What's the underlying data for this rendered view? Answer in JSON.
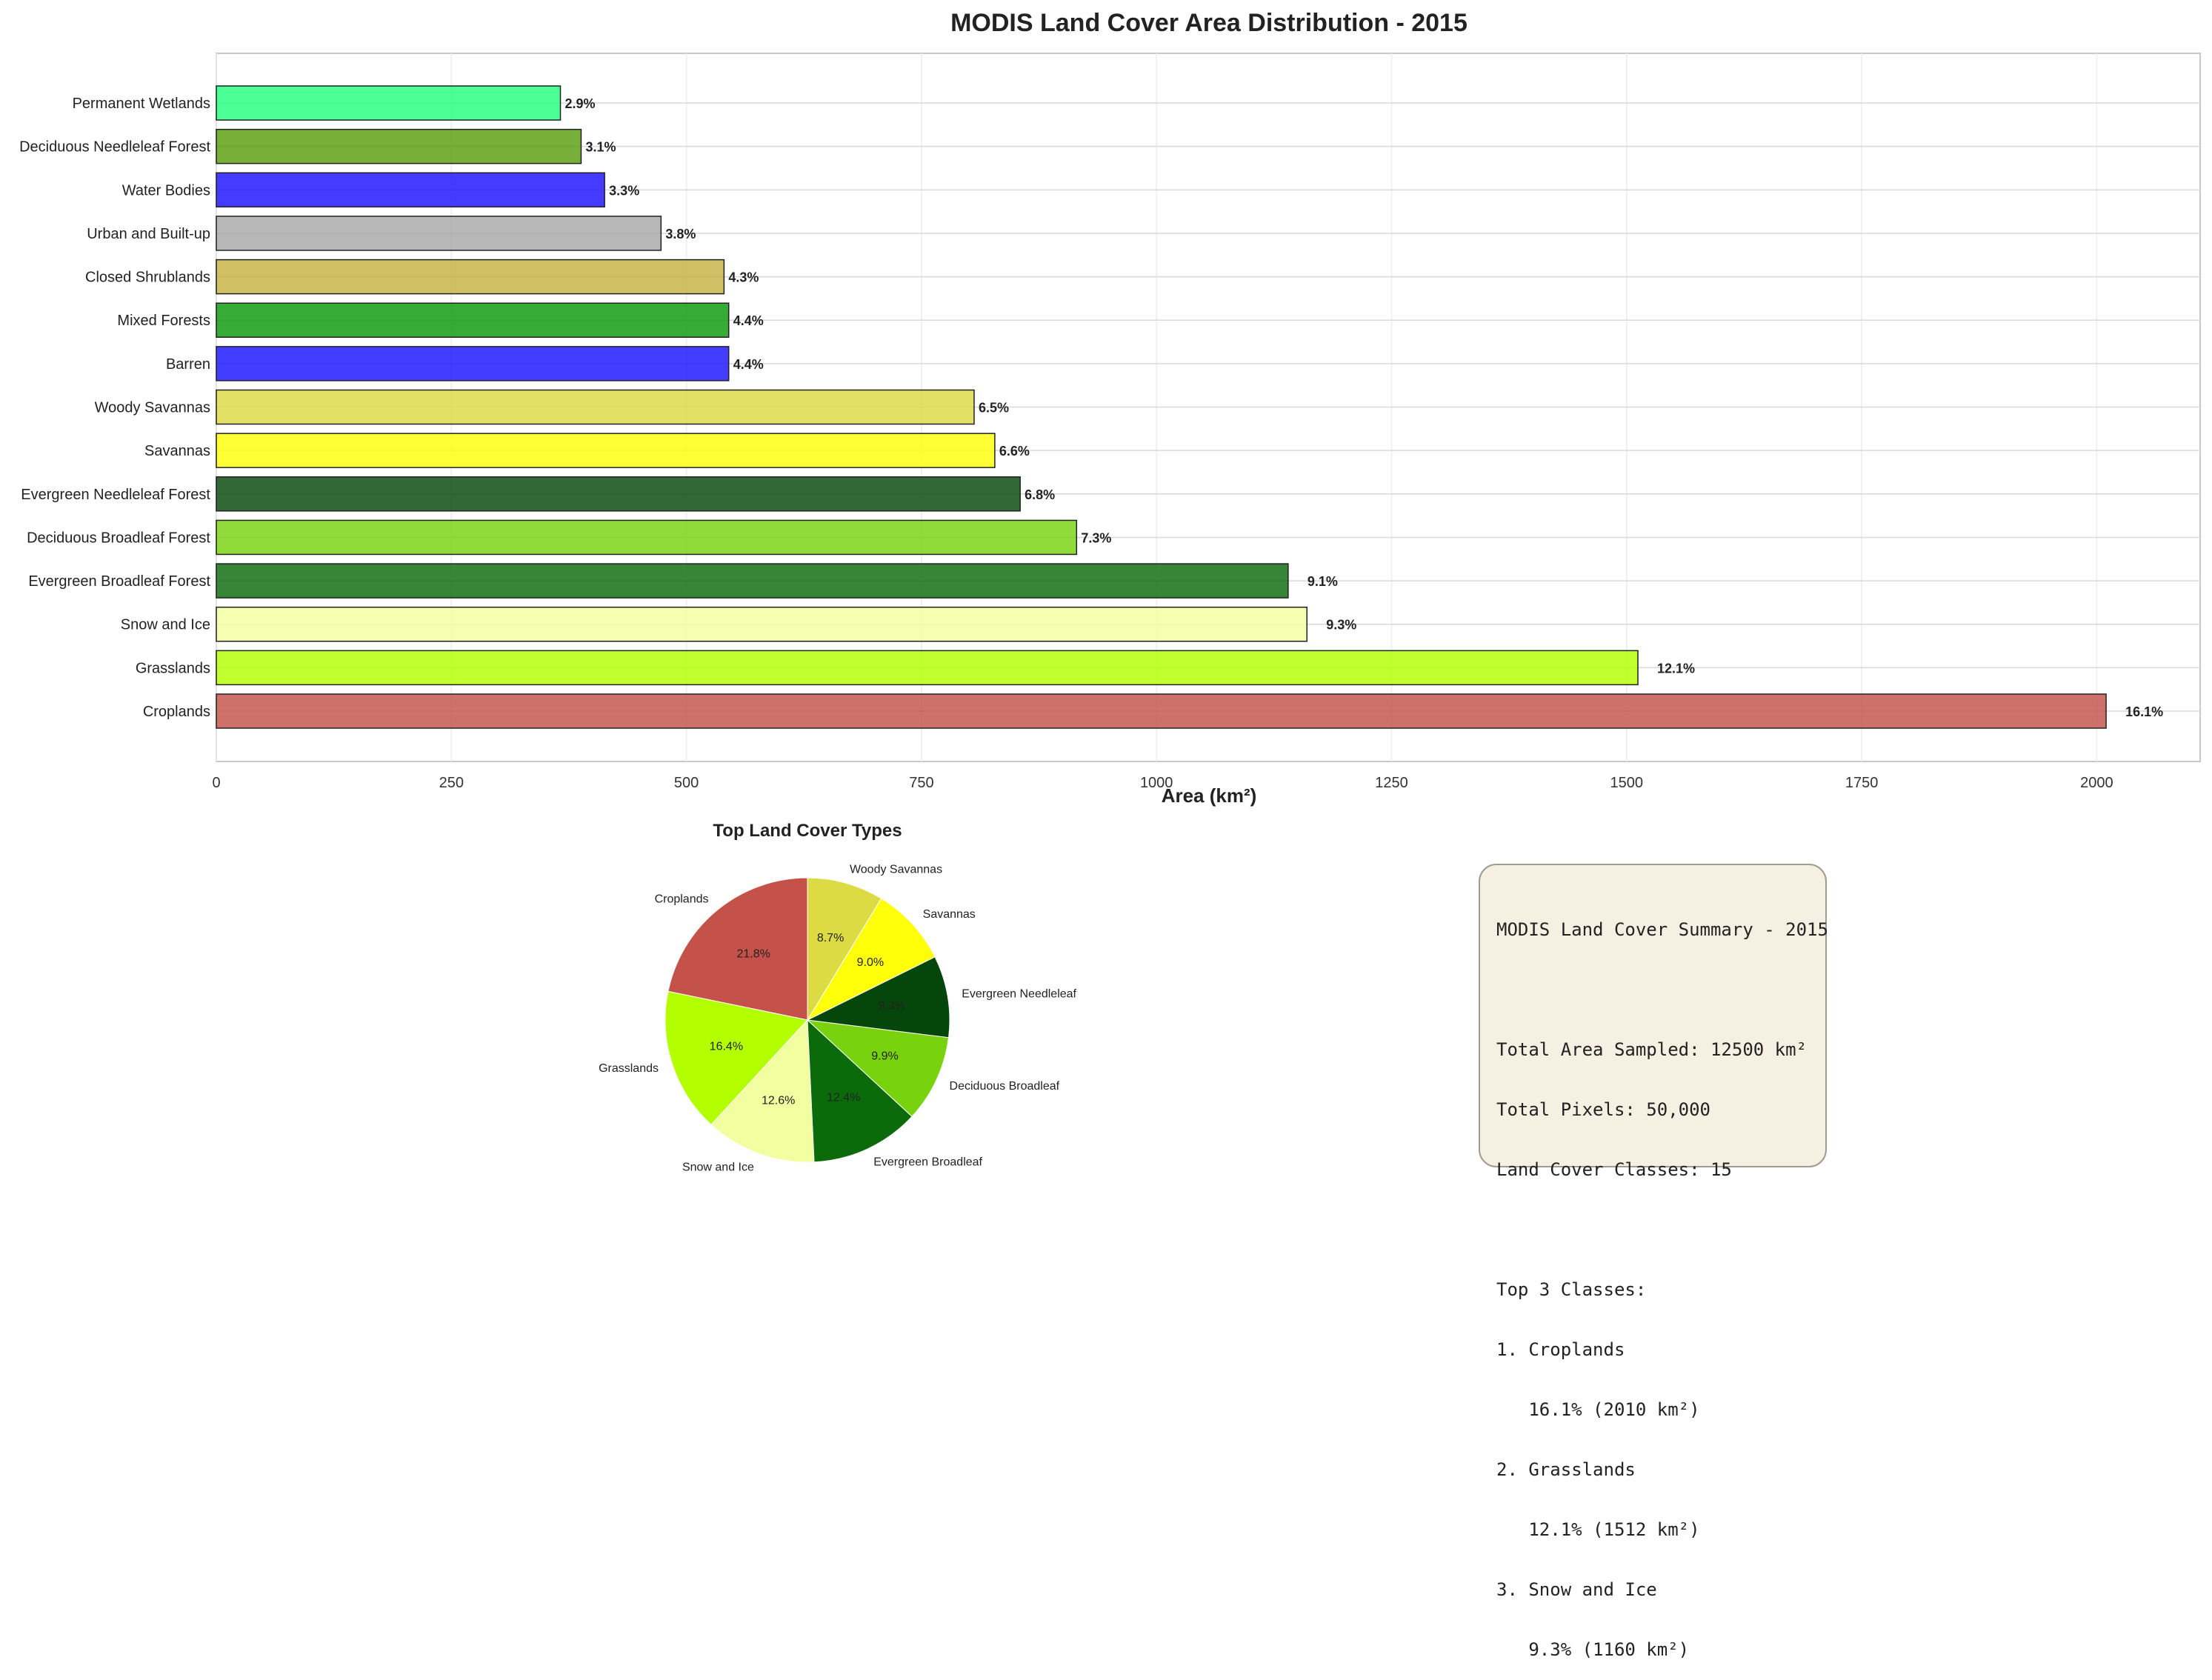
{
  "figure": {
    "title": "MODIS Land Cover Area Distribution - 2015"
  },
  "chart_data": [
    {
      "type": "bar",
      "orientation": "horizontal",
      "title": "MODIS Land Cover Area Distribution - 2015",
      "xlabel": "Area (km²)",
      "ylabel": "",
      "xlim": [
        0,
        2110
      ],
      "xticks": [
        0,
        250,
        500,
        750,
        1000,
        1250,
        1500,
        1750,
        2000
      ],
      "grid": true,
      "categories": [
        "Croplands",
        "Grasslands",
        "Snow and Ice",
        "Evergreen Broadleaf Forest",
        "Deciduous Broadleaf Forest",
        "Evergreen Needleleaf Forest",
        "Savannas",
        "Woody Savannas",
        "Barren",
        "Mixed Forests",
        "Closed Shrublands",
        "Urban and Built-up",
        "Water Bodies",
        "Deciduous Needleleaf Forest",
        "Permanent Wetlands"
      ],
      "values": [
        2010,
        1512,
        1160,
        1140,
        915,
        855,
        828,
        806,
        545,
        545,
        540,
        473,
        413,
        388,
        366
      ],
      "labels": [
        "16.1%",
        "12.1%",
        "9.3%",
        "9.1%",
        "7.3%",
        "6.8%",
        "6.6%",
        "6.5%",
        "4.4%",
        "4.4%",
        "4.3%",
        "3.8%",
        "3.3%",
        "3.1%",
        "2.9%"
      ],
      "colors": [
        "#c5524a",
        "#b3ff00",
        "#f2ffa0",
        "#0b6b0b",
        "#78d20e",
        "#05470a",
        "#ffff0a",
        "#dcdb43",
        "#1a13ff",
        "#0a9a0a",
        "#c7b144",
        "#a7a7a7",
        "#1b10ff",
        "#599d0e",
        "#22ff7e"
      ]
    },
    {
      "type": "pie",
      "title": "Top Land Cover Types",
      "categories": [
        "Croplands",
        "Grasslands",
        "Snow and Ice",
        "Evergreen Broadleaf",
        "Deciduous Broadleaf",
        "Evergreen Needleleaf",
        "Savannas",
        "Woody Savannas"
      ],
      "values": [
        21.8,
        16.4,
        12.6,
        12.4,
        9.9,
        9.3,
        9.0,
        8.7
      ],
      "labels": [
        "21.8%",
        "16.4%",
        "12.6%",
        "12.4%",
        "9.9%",
        "9.3%",
        "9.0%",
        "8.7%"
      ],
      "colors": [
        "#c5524a",
        "#b3ff00",
        "#f2ffa0",
        "#0b6b0b",
        "#78d20e",
        "#05470a",
        "#ffff0a",
        "#dcdb43"
      ],
      "startangle": 90,
      "direction": "counterclockwise"
    }
  ],
  "summary": {
    "lines": [
      "MODIS Land Cover Summary - 2015",
      "",
      "Total Area Sampled: 12500 km²",
      "Total Pixels: 50,000",
      "Land Cover Classes: 15",
      "",
      "Top 3 Classes:",
      "1. Croplands",
      "   16.1% (2010 km²)",
      "2. Grasslands",
      "   12.1% (1512 km²)",
      "3. Snow and Ice",
      "   9.3% (1160 km²)"
    ],
    "background": "#f6f0e3"
  }
}
